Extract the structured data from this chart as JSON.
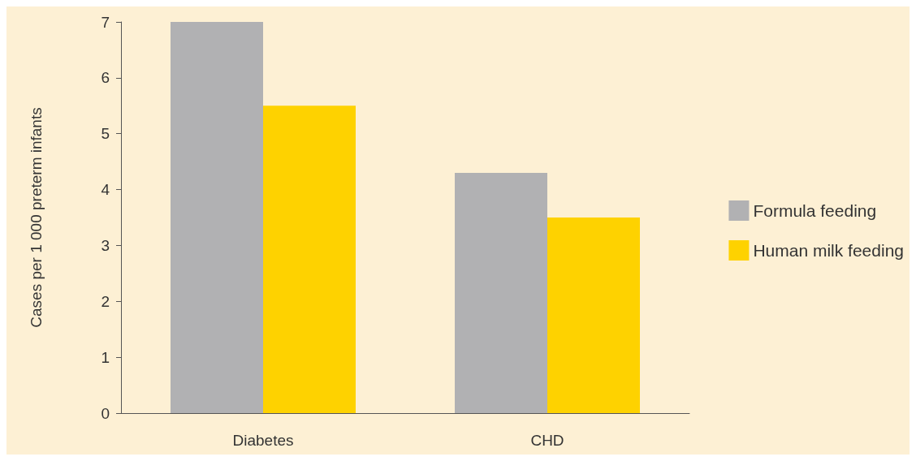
{
  "chart_data": {
    "type": "bar",
    "ylabel": "Cases per 1 000 preterm infants",
    "categories": [
      "Diabetes",
      "CHD"
    ],
    "series": [
      {
        "name": "Formula feeding",
        "color": "#b1b1b3",
        "values": [
          7.0,
          4.3
        ]
      },
      {
        "name": "Human milk feeding",
        "color": "#fed200",
        "values": [
          5.5,
          3.5
        ]
      }
    ],
    "ylim": [
      0,
      7
    ],
    "yticks": [
      0,
      1,
      2,
      3,
      4,
      5,
      6,
      7
    ],
    "grid": false,
    "legend": "right"
  }
}
